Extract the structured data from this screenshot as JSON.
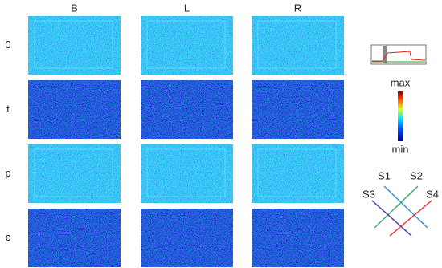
{
  "columns": [
    "B",
    "L",
    "R"
  ],
  "rows": [
    "0",
    "t",
    "p",
    "c"
  ],
  "colorbar": {
    "max": "max",
    "min": "min"
  },
  "schematic": {
    "labels": [
      "S1",
      "S2",
      "S3",
      "S4"
    ]
  }
}
